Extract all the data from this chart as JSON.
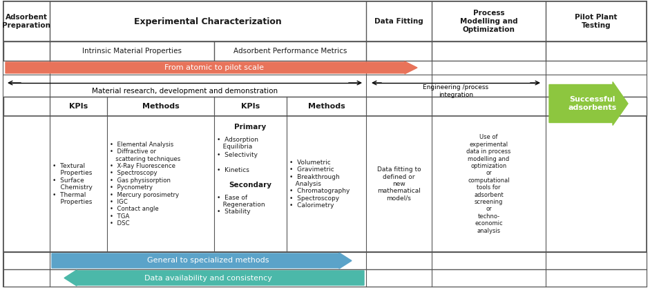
{
  "orange_color": "#E8735A",
  "blue_color": "#5BA3C9",
  "teal_color": "#4BB8A9",
  "green_color": "#8DC63F",
  "border_color": "#555555",
  "text_color": "#1a1a1a",
  "col0_header": "Adsorbent\nPreparation",
  "col1_header": "Experimental Characterization",
  "col2_header": "Data Fitting",
  "col3_header": "Process\nModelling and\nOptimization",
  "col4_header": "Pilot Plant\nTesting",
  "sub1_header": "Intrinsic Material Properties",
  "sub2_header": "Adsorbent Performance Metrics",
  "orange_arrow_text": "From atomic to pilot scale",
  "double_arrow_text": "Material research, development and demonstration",
  "eng_arrow_text": "Engineering /process\nintegration",
  "blue_arrow_text": "General to specialized methods",
  "teal_arrow_text": "Data availability and consistency",
  "green_arrow_text": "Successful\nadsorbents",
  "kpi_label": "KPIs",
  "methods_label": "Methods",
  "primary_label": "Primary",
  "secondary_label": "Secondary",
  "kpi1_text": "•  Textural\n    Properties\n•  Surface\n    Chemistry\n•  Thermal\n    Properties",
  "methods1_lines": [
    "•  Elemental Analysis",
    "•  Diffractive or",
    "   scattering techniques",
    "•  X-Ray Fluorescence",
    "•  Spectroscopy",
    "•  Gas physisorption",
    "•  Pycnometry",
    "•  Mercury porosimetry",
    "•  IGC",
    "•  Contact angle",
    "•  TGA",
    "•  DSC"
  ],
  "kpi2_primary_items": [
    "•  Adsorption\n   Equilibria",
    "•  Selectivity",
    "•  Kinetics"
  ],
  "kpi2_secondary_items": [
    "•  Ease of\n   Regeneration",
    "•  Stability"
  ],
  "methods2_lines": [
    "•  Volumetric",
    "•  Gravimetric",
    "•  Breakthrough",
    "   Analysis",
    "•  Chromatography",
    "•  Spectroscopy",
    "•  Calorimetry"
  ],
  "datafitting_text": "Data fitting to\ndefined or\nnew\nmathematical\nmodel/s",
  "process_text": "Use of\nexperimental\ndata in process\nmodelling and\noptimization\nor\ncomputational\ntools for\nadsorbent\nscreening\nor\ntechno-\neconomic\nanalysis"
}
